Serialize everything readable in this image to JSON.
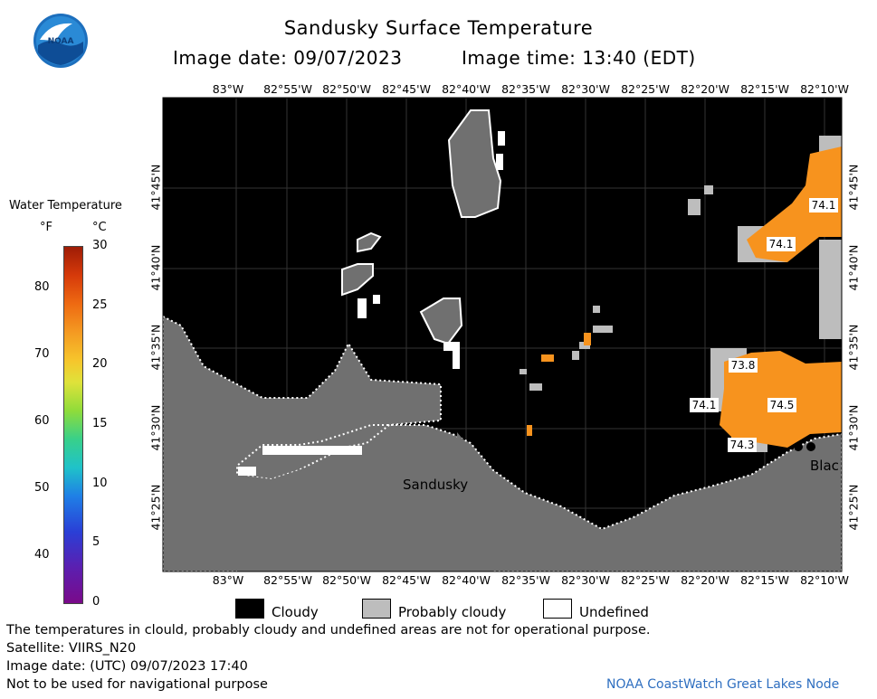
{
  "header": {
    "title": "Sandusky Surface Temperature",
    "image_date": "Image date: 09/07/2023",
    "image_time": "Image time: 13:40 (EDT)"
  },
  "logo": {
    "text": "NOAA",
    "icon": "noaa-logo-icon"
  },
  "map": {
    "lon_labels": [
      "83°W",
      "82°55'W",
      "82°50'W",
      "82°45'W",
      "82°40'W",
      "82°35'W",
      "82°30'W",
      "82°25'W",
      "82°20'W",
      "82°15'W",
      "82°10'W"
    ],
    "lat_labels": [
      "41°45'N",
      "41°40'N",
      "41°35'N",
      "41°30'N",
      "41°25'N"
    ],
    "place_labels": [
      "Sandusky",
      "Blac"
    ],
    "temperature_labels": [
      {
        "value": "74.1",
        "position": "upper-right-1"
      },
      {
        "value": "74.1",
        "position": "upper-right-2"
      },
      {
        "value": "73.8",
        "position": "lower-right-1"
      },
      {
        "value": "74.1",
        "position": "lower-right-2"
      },
      {
        "value": "74.5",
        "position": "lower-right-3"
      },
      {
        "value": "74.3",
        "position": "lower-right-4"
      }
    ],
    "colors": {
      "cloudy": "#000000",
      "probably_cloudy": "#bdbdbd",
      "undefined": "#ffffff",
      "land": "#707070",
      "warm_water": "#f7931e"
    }
  },
  "colorbar": {
    "title": "Water Temperature",
    "unit_f": "°F",
    "unit_c": "°C",
    "f_ticks": [
      "80",
      "70",
      "60",
      "50",
      "40"
    ],
    "c_ticks": [
      "30",
      "25",
      "20",
      "15",
      "10",
      "5",
      "0"
    ],
    "c_range": [
      0,
      30
    ]
  },
  "legend": {
    "cloudy": "Cloudy",
    "probably_cloudy": "Probably cloudy",
    "undefined": "Undefined"
  },
  "footer": {
    "disclaimer": "The temperatures in clould, probably cloudy and undefined areas are not for operational purpose.",
    "satellite": "Satellite: VIIRS_N20",
    "utc_date": "Image date: (UTC) 09/07/2023  17:40",
    "navigation": "Not to be used for navigational purpose",
    "credit": "NOAA CoastWatch Great Lakes Node"
  }
}
